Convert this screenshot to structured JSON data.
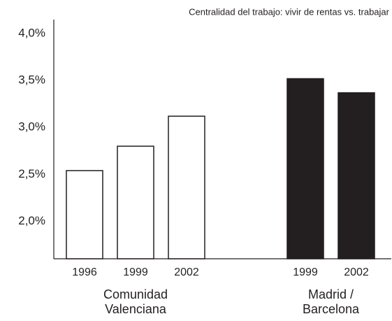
{
  "chart_data": {
    "type": "bar",
    "title": "Centralidad del trabajo: vivir de rentas vs. trabajar",
    "ylim": [
      1.6,
      4.15
    ],
    "yticks": [
      {
        "value": 2.0,
        "label": "2,0%"
      },
      {
        "value": 2.5,
        "label": "2,5%"
      },
      {
        "value": 3.0,
        "label": "3,0%"
      },
      {
        "value": 3.5,
        "label": "3,5%"
      },
      {
        "value": 4.0,
        "label": "4,0%"
      }
    ],
    "groups": [
      {
        "name_lines": [
          "Comunidad",
          "Valenciana"
        ],
        "categories": [
          "1996",
          "1999",
          "2002"
        ],
        "values": [
          2.54,
          2.8,
          3.12
        ],
        "color": "#ffffff"
      },
      {
        "name_lines": [
          "Madrid /",
          "Barcelona"
        ],
        "categories": [
          "1999",
          "2002"
        ],
        "values": [
          3.52,
          3.37
        ],
        "color": "#231f20"
      }
    ]
  }
}
